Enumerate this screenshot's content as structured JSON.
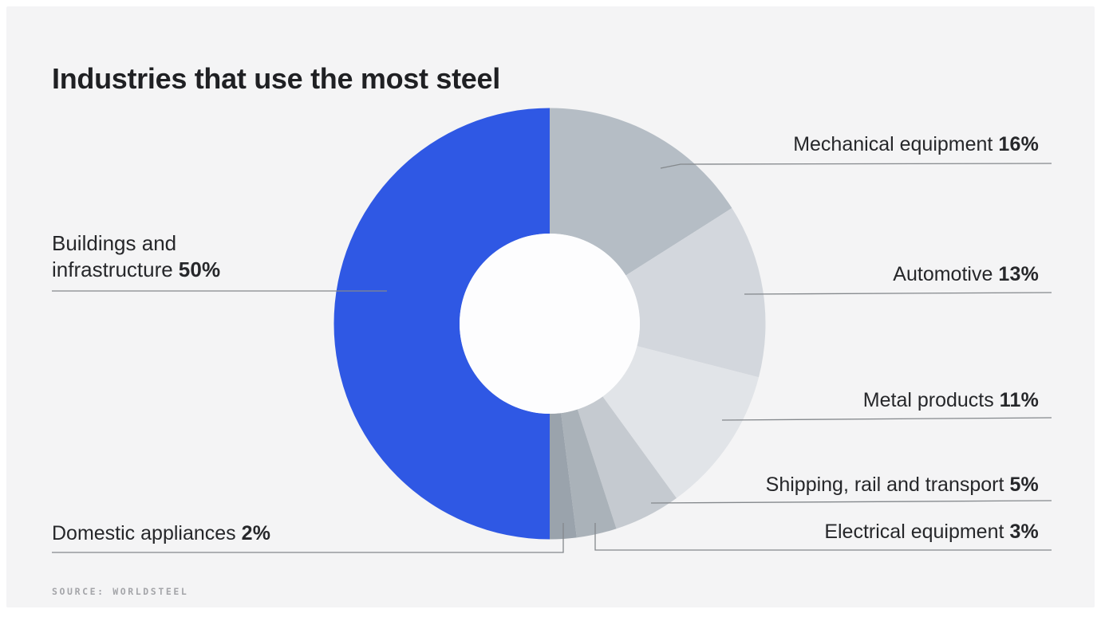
{
  "page": {
    "title": "Industries that use the most steel",
    "source_label": "SOURCE: WORLDSTEEL"
  },
  "colors": {
    "page_background": "#ffffff",
    "canvas_background": "#f4f4f5",
    "title_text": "#1f2023",
    "label_text": "#26272a",
    "leader_line": "#84888c",
    "source_text": "#a4a5a9",
    "donut_hole": "#fdfdfe",
    "accent_blue": "#2f58e4"
  },
  "chart_data": {
    "type": "pie",
    "subtype": "donut",
    "title": "Industries that use the most steel",
    "source": "WORLDSTEEL",
    "units": "percent share of steel use",
    "start_angle_deg": 0,
    "direction": "clockwise",
    "inner_radius_ratio": 0.42,
    "legend_position": "callout-labels",
    "series": [
      {
        "label": "Mechanical equipment",
        "value": 16,
        "pct_label": "16%",
        "color": "#b5bdc5",
        "label_side": "right"
      },
      {
        "label": "Automotive",
        "value": 13,
        "pct_label": "13%",
        "color": "#d3d7dd",
        "label_side": "right"
      },
      {
        "label": "Metal products",
        "value": 11,
        "pct_label": "11%",
        "color": "#e1e4e8",
        "label_side": "right"
      },
      {
        "label": "Shipping, rail and transport",
        "value": 5,
        "pct_label": "5%",
        "color": "#c5cad0",
        "label_side": "right"
      },
      {
        "label": "Electrical equipment",
        "value": 3,
        "pct_label": "3%",
        "color": "#aab2b9",
        "label_side": "right"
      },
      {
        "label": "Domestic appliances",
        "value": 2,
        "pct_label": "2%",
        "color": "#9aa3ac",
        "label_side": "left"
      },
      {
        "label": "Buildings and infrastructure",
        "value": 50,
        "pct_label": "50%",
        "color": "#2f58e4",
        "label_side": "left"
      }
    ]
  }
}
